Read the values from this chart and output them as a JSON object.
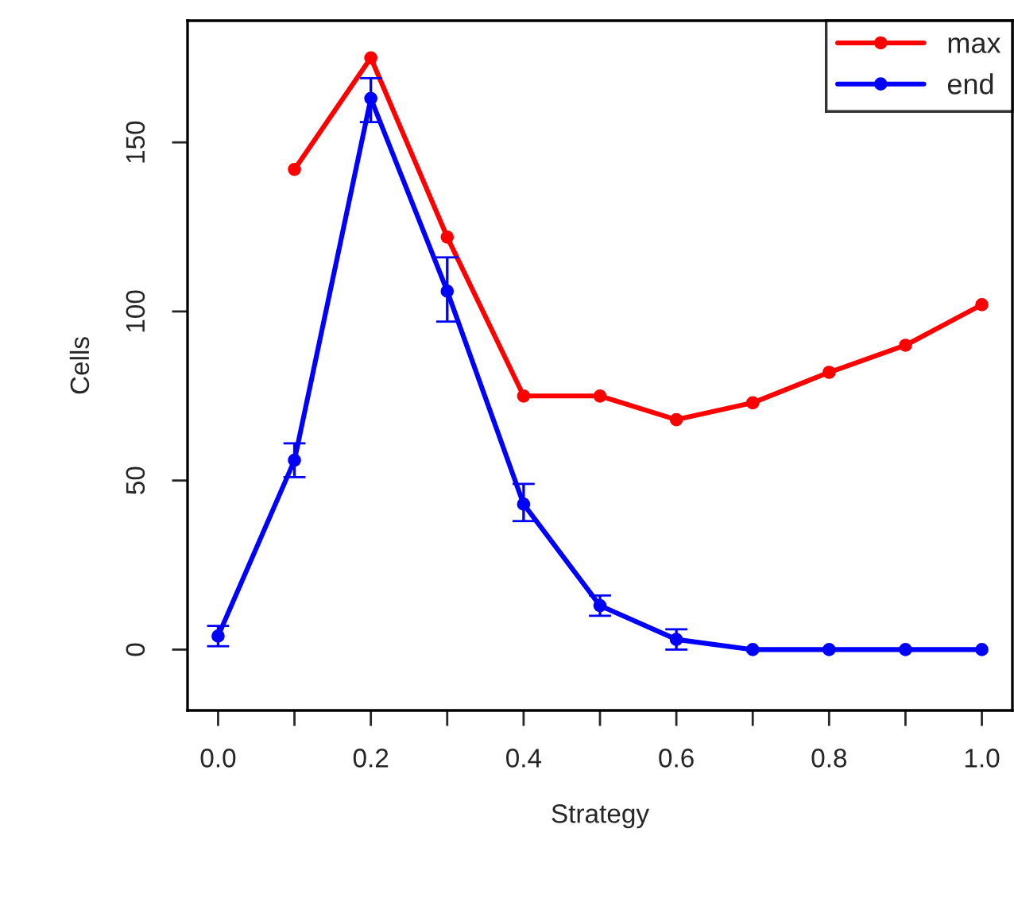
{
  "chart_data": {
    "type": "line",
    "xlabel": "Strategy",
    "ylabel": "Cells",
    "x": [
      0.0,
      0.1,
      0.2,
      0.3,
      0.4,
      0.5,
      0.6,
      0.7,
      0.8,
      0.9,
      1.0
    ],
    "series": [
      {
        "name": "max",
        "color": "#ff0000",
        "values": [
          null,
          142,
          175,
          122,
          75,
          75,
          68,
          73,
          82,
          90,
          102
        ]
      },
      {
        "name": "end",
        "color": "#0000ff",
        "values": [
          4,
          56,
          163,
          106,
          43,
          13,
          3,
          0,
          0,
          0,
          0
        ],
        "errors": [
          3,
          5,
          [
            156,
            169
          ],
          [
            97,
            116
          ],
          [
            38,
            49
          ],
          3,
          3,
          null,
          null,
          null,
          null
        ]
      }
    ],
    "xlim": [
      -0.04,
      1.04
    ],
    "ylim": [
      -18,
      186
    ],
    "xticks": [
      {
        "value": 0.0,
        "label": "0.0"
      },
      {
        "value": 0.1,
        "label": null
      },
      {
        "value": 0.2,
        "label": "0.2"
      },
      {
        "value": 0.3,
        "label": null
      },
      {
        "value": 0.4,
        "label": "0.4"
      },
      {
        "value": 0.5,
        "label": null
      },
      {
        "value": 0.6,
        "label": "0.6"
      },
      {
        "value": 0.7,
        "label": null
      },
      {
        "value": 0.8,
        "label": "0.8"
      },
      {
        "value": 0.9,
        "label": null
      },
      {
        "value": 1.0,
        "label": "1.0"
      }
    ],
    "yticks": [
      0,
      50,
      100,
      150
    ],
    "grid": false,
    "legend": "top right",
    "marker": "circle",
    "line_style": "solid"
  }
}
